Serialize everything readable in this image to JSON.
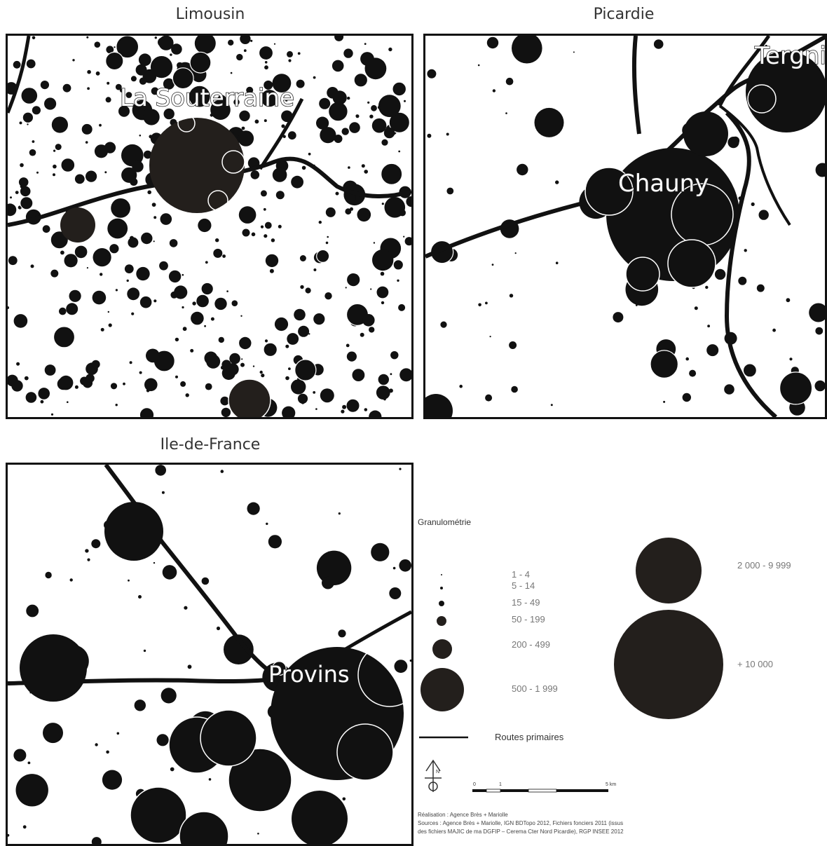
{
  "panels": {
    "limousin": {
      "title": "Limousin",
      "city": "La Souterraine"
    },
    "picardie": {
      "title": "Picardie",
      "city": "Chauny",
      "edge_label": "Tergni"
    },
    "idf": {
      "title": "Ile-de-France",
      "city": "Provins"
    }
  },
  "colors": {
    "dot": "#111111",
    "large": "#231f1c",
    "road": "#111111",
    "halo": "#ffffff"
  },
  "legend": {
    "title": "Granulométrie",
    "classes": [
      "1 - 4",
      "5 - 14",
      "15 - 49",
      "50 - 199",
      "200 - 499",
      "500 - 1 999",
      "2 000 - 9 999",
      "+ 10 000"
    ],
    "roads_label": "Routes primaires",
    "north_label": "N",
    "scale_labels": [
      "0",
      "1",
      "5 km"
    ],
    "credits": [
      "Réalisation : Agence Brès + Mariolle",
      "Sources : Agence Brès + Mariolle, IGN BDTopo 2012, Fichiers fonciers 2011 (issus",
      "des fichiers MAJIC de ma DGFIP – Cerema Cter Nord Picardie), RGP INSEE 2012"
    ]
  }
}
